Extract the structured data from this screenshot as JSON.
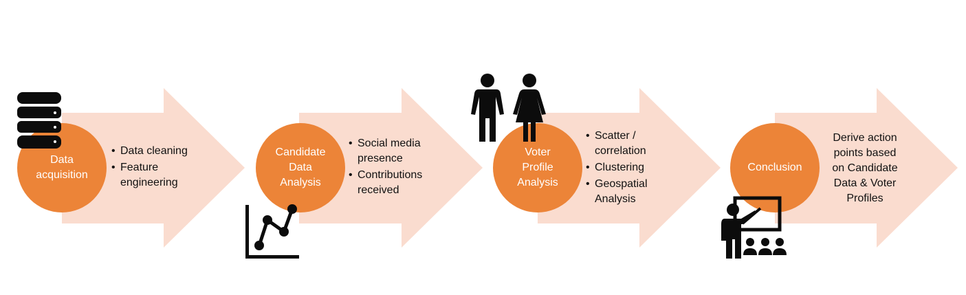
{
  "colors": {
    "arrow": "#fadccf",
    "circle": "#ec8438",
    "icon": "#0c0c0c",
    "text": "#111111",
    "label": "#ffffff"
  },
  "steps": [
    {
      "title": "Data\nacquisition",
      "icon": "database-icon",
      "bullets": [
        "Data cleaning",
        "Feature\nengineering"
      ]
    },
    {
      "title": "Candidate\nData\nAnalysis",
      "icon": "line-chart-icon",
      "bullets": [
        "Social media\npresence",
        "Contributions\nreceived"
      ]
    },
    {
      "title": "Voter\nProfile\nAnalysis",
      "icon": "people-icon",
      "bullets": [
        "Scatter /\ncorrelation",
        "Clustering",
        "Geospatial\nAnalysis"
      ]
    },
    {
      "title": "Conclusion",
      "icon": "presentation-icon",
      "text": "Derive action\npoints based\non Candidate\nData & Voter\nProfiles"
    }
  ]
}
